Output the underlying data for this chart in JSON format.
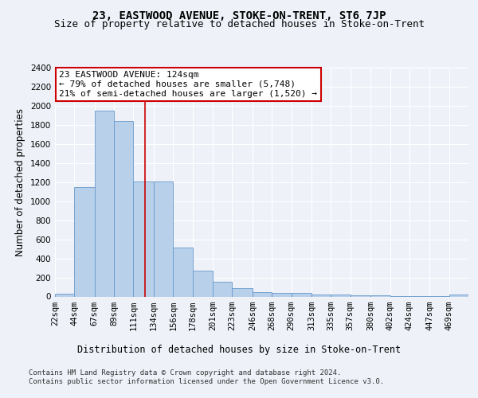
{
  "title": "23, EASTWOOD AVENUE, STOKE-ON-TRENT, ST6 7JP",
  "subtitle": "Size of property relative to detached houses in Stoke-on-Trent",
  "xlabel": "Distribution of detached houses by size in Stoke-on-Trent",
  "ylabel": "Number of detached properties",
  "bar_labels": [
    "22sqm",
    "44sqm",
    "67sqm",
    "89sqm",
    "111sqm",
    "134sqm",
    "156sqm",
    "178sqm",
    "201sqm",
    "223sqm",
    "246sqm",
    "268sqm",
    "290sqm",
    "313sqm",
    "335sqm",
    "357sqm",
    "380sqm",
    "402sqm",
    "424sqm",
    "447sqm",
    "469sqm"
  ],
  "bar_values": [
    30,
    1150,
    1950,
    1840,
    1210,
    1210,
    510,
    270,
    155,
    85,
    50,
    40,
    40,
    20,
    18,
    10,
    10,
    5,
    5,
    5,
    20
  ],
  "bar_color": "#b8d0ea",
  "bar_edge_color": "#6699cc",
  "property_line_x": 124,
  "bin_edges": [
    22,
    44,
    67,
    89,
    111,
    134,
    156,
    178,
    201,
    223,
    246,
    268,
    290,
    313,
    335,
    357,
    380,
    402,
    424,
    447,
    469,
    491
  ],
  "annotation_text": "23 EASTWOOD AVENUE: 124sqm\n← 79% of detached houses are smaller (5,748)\n21% of semi-detached houses are larger (1,520) →",
  "annotation_box_color": "#ffffff",
  "annotation_box_edge": "#cc0000",
  "vline_color": "#cc0000",
  "ylim": [
    0,
    2400
  ],
  "yticks": [
    0,
    200,
    400,
    600,
    800,
    1000,
    1200,
    1400,
    1600,
    1800,
    2000,
    2200,
    2400
  ],
  "footer_line1": "Contains HM Land Registry data © Crown copyright and database right 2024.",
  "footer_line2": "Contains public sector information licensed under the Open Government Licence v3.0.",
  "background_color": "#eef2f8",
  "grid_color": "#ffffff",
  "title_fontsize": 10,
  "subtitle_fontsize": 9,
  "axis_label_fontsize": 8.5,
  "tick_fontsize": 7.5,
  "annotation_fontsize": 8,
  "footer_fontsize": 6.5
}
